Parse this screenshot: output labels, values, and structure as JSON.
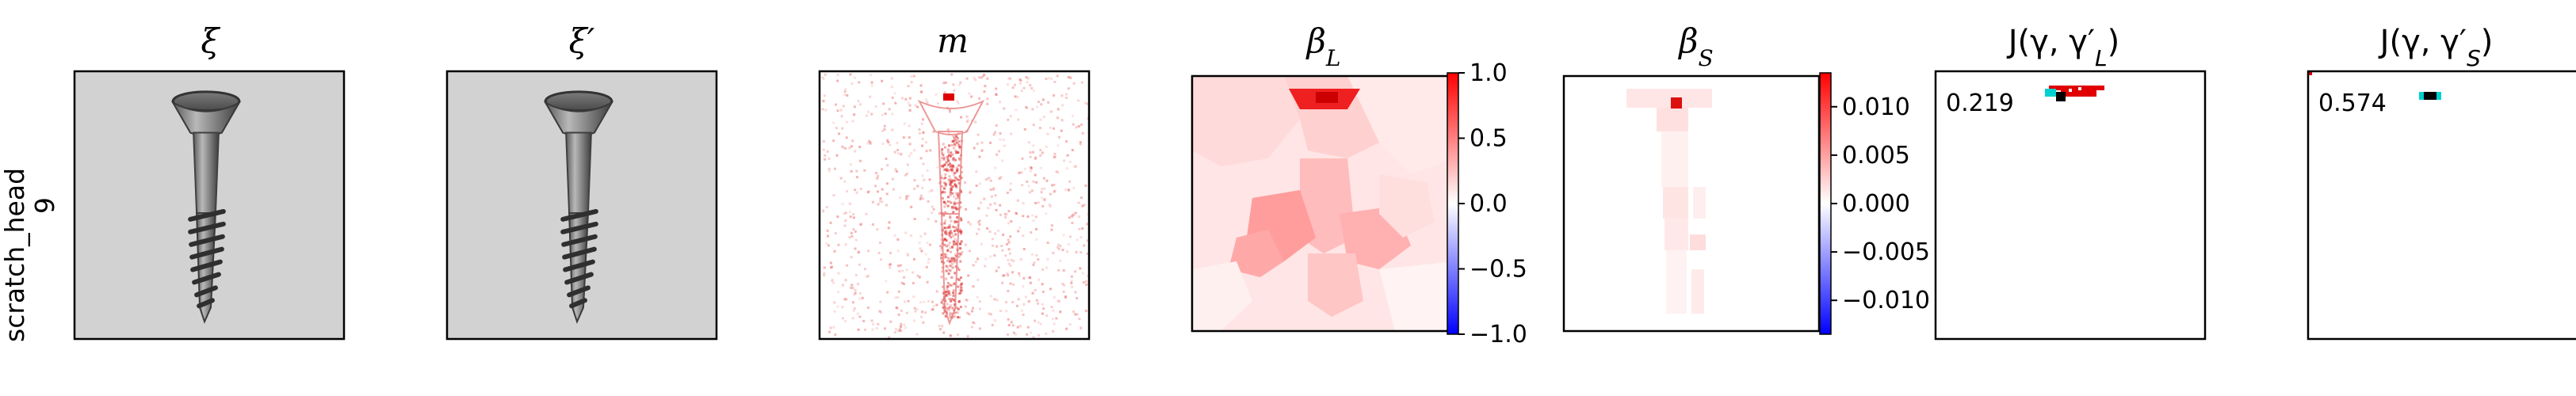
{
  "row_label": {
    "line1": "scratch_head",
    "line2": "9"
  },
  "panels": [
    {
      "id": "xi",
      "title": "ξ"
    },
    {
      "id": "xi_prime",
      "title": "ξ′"
    },
    {
      "id": "m",
      "title": "m"
    },
    {
      "id": "beta_L",
      "title": "βL"
    },
    {
      "id": "beta_S",
      "title": "βS"
    },
    {
      "id": "J_L",
      "title": "J(γ, γ′L)",
      "score": "0.219"
    },
    {
      "id": "J_S",
      "title": "J(γ, γ′S)",
      "score": "0.574"
    }
  ],
  "chart_data": [
    {
      "type": "heatmap",
      "panel": "beta_L",
      "colorbar": {
        "colormap": "bwr",
        "range": [
          -1.0,
          1.0
        ],
        "ticks": [
          "1.0",
          "0.5",
          "0.0",
          "−0.5",
          "−1.0"
        ],
        "tick_values": [
          1.0,
          0.5,
          0.0,
          -0.5,
          -1.0
        ]
      }
    },
    {
      "type": "heatmap",
      "panel": "beta_S",
      "colorbar": {
        "colormap": "bwr",
        "range": [
          -0.0135,
          0.0135
        ],
        "ticks": [
          "0.010",
          "0.005",
          "0.000",
          "−0.005",
          "−0.010"
        ],
        "tick_values": [
          0.01,
          0.005,
          0.0,
          -0.005,
          -0.01
        ]
      }
    }
  ]
}
